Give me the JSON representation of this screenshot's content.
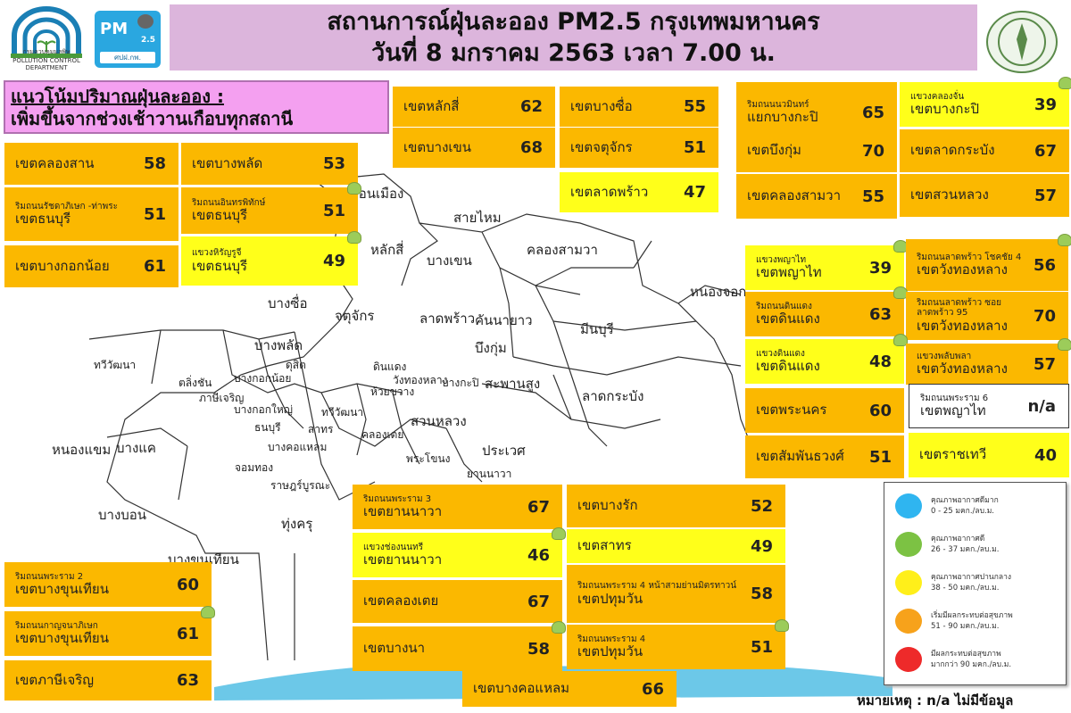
{
  "header": {
    "logo_pcd": "กรมควบคุมมลพิษ POLLUTION CONTROL DEPARTMENT",
    "logo_pm": "PM",
    "logo_pm_sub": "2.5",
    "logo_pm_org": "ศปฝ.กพ.",
    "title_line1": "สถานการณ์ฝุ่นละออง PM2.5 กรุงเทพมหานคร",
    "title_line2": "วันที่ 8 มกราคม 2563 เวลา 7.00 น.",
    "seal": "กรุงเทพมหานคร"
  },
  "trend": {
    "heading": "แนวโน้มปริมาณฝุ่นละออง :",
    "text": "เพิ่มขึ้นจากช่วงเช้าวานเกือบทุกสถานี"
  },
  "colors": {
    "orange": "#fbb800",
    "yellow": "#ffff1a",
    "blue": "#2fb5f0",
    "green": "#7cc243",
    "red": "#ee2a2a"
  },
  "stations": [
    {
      "sub": "",
      "district": "เขตหลักสี่",
      "value": "62",
      "level": "orange"
    },
    {
      "sub": "",
      "district": "เขตบางเขน",
      "value": "68",
      "level": "orange"
    },
    {
      "sub": "",
      "district": "เขตบางซื่อ",
      "value": "55",
      "level": "orange"
    },
    {
      "sub": "",
      "district": "เขตจตุจักร",
      "value": "51",
      "level": "orange"
    },
    {
      "sub": "",
      "district": "เขตลาดพร้าว",
      "value": "47",
      "level": "yellow"
    },
    {
      "sub": "ริมถนนนวมินทร์",
      "district": "แยกบางกะปิ",
      "value": "65",
      "level": "orange"
    },
    {
      "sub": "แขวงคลองจั่น",
      "district": "เขตบางกะปิ",
      "value": "39",
      "level": "yellow",
      "icon": "sensor-dot"
    },
    {
      "sub": "",
      "district": "เขตบึงกุ่ม",
      "value": "70",
      "level": "orange"
    },
    {
      "sub": "",
      "district": "เขตลาดกระบัง",
      "value": "67",
      "level": "orange"
    },
    {
      "sub": "",
      "district": "เขตคลองสามวา",
      "value": "55",
      "level": "orange"
    },
    {
      "sub": "",
      "district": "เขตสวนหลวง",
      "value": "57",
      "level": "orange"
    },
    {
      "sub": "",
      "district": "เขตคลองสาน",
      "value": "58",
      "level": "orange"
    },
    {
      "sub": "",
      "district": "เขตบางพลัด",
      "value": "53",
      "level": "orange"
    },
    {
      "sub": "ริมถนนรัชดาภิเษก -ท่าพระ",
      "district": "เขตธนบุรี",
      "value": "51",
      "level": "orange"
    },
    {
      "sub": "ริมถนนอินทรพิทักษ์",
      "district": "เขตธนบุรี",
      "value": "51",
      "level": "orange",
      "icon": "sensor-dot"
    },
    {
      "sub": "",
      "district": "เขตบางกอกน้อย",
      "value": "61",
      "level": "orange"
    },
    {
      "sub": "แขวงหิรัญรูจี",
      "district": "เขตธนบุรี",
      "value": "49",
      "level": "yellow",
      "icon": "sensor-dot"
    },
    {
      "sub": "แขวงพญาไท",
      "district": "เขตพญาไท",
      "value": "39",
      "level": "yellow",
      "icon": "sensor-dot"
    },
    {
      "sub": "ริมถนนลาดพร้าว โชคชัย 4",
      "district": "เขตวังทองหลาง",
      "value": "56",
      "level": "orange",
      "icon": "sensor-dot"
    },
    {
      "sub": "ริมถนนดินแดง",
      "district": "เขตดินแดง",
      "value": "63",
      "level": "orange",
      "icon": "sensor-dot"
    },
    {
      "sub": "ริมถนนลาดพร้าว ซอยลาดพร้าว 95",
      "district": "เขตวังทองหลาง",
      "value": "70",
      "level": "orange"
    },
    {
      "sub": "แขวงดินแดง",
      "district": "เขตดินแดง",
      "value": "48",
      "level": "yellow",
      "icon": "sensor-dot"
    },
    {
      "sub": "แขวงพลับพลา",
      "district": "เขตวังทองหลาง",
      "value": "57",
      "level": "orange",
      "icon": "sensor-dot"
    },
    {
      "sub": "ริมถนนพระราม 6",
      "district": "เขตพญาไท",
      "value": "n/a",
      "level": "white"
    },
    {
      "sub": "",
      "district": "เขตพระนคร",
      "value": "60",
      "level": "orange"
    },
    {
      "sub": "",
      "district": "เขตสัมพันธวงศ์",
      "value": "51",
      "level": "orange"
    },
    {
      "sub": "",
      "district": "เขตราชเทวี",
      "value": "40",
      "level": "yellow"
    },
    {
      "sub": "ริมถนนพระราม 3",
      "district": "เขตยานนาวา",
      "value": "67",
      "level": "orange"
    },
    {
      "sub": "แขวงช่องนนทรี",
      "district": "เขตยานนาวา",
      "value": "46",
      "level": "yellow",
      "icon": "sensor-dot"
    },
    {
      "sub": "",
      "district": "เขตคลองเตย",
      "value": "67",
      "level": "orange"
    },
    {
      "sub": "",
      "district": "เขตบางนา",
      "value": "58",
      "level": "orange",
      "icon": "sensor-dot"
    },
    {
      "sub": "",
      "district": "เขตบางรัก",
      "value": "52",
      "level": "orange"
    },
    {
      "sub": "",
      "district": "เขตสาทร",
      "value": "49",
      "level": "yellow"
    },
    {
      "sub": "ริมถนนพระราม 4 หน้าสามย่านมิตรทาวน์",
      "district": "เขตปทุมวัน",
      "value": "58",
      "level": "orange"
    },
    {
      "sub": "ริมถนนพระราม 4",
      "district": "เขตปทุมวัน",
      "value": "51",
      "level": "orange",
      "icon": "sensor-dot"
    },
    {
      "sub": "",
      "district": "เขตบางคอแหลม",
      "value": "66",
      "level": "orange"
    },
    {
      "sub": "ริมถนนพระราม 2",
      "district": "เขตบางขุนเทียน",
      "value": "60",
      "level": "orange"
    },
    {
      "sub": "ริมถนนกาญจนาภิเษก",
      "district": "เขตบางขุนเทียน",
      "value": "61",
      "level": "orange",
      "icon": "sensor-dot"
    },
    {
      "sub": "",
      "district": "เขตภาษีเจริญ",
      "value": "63",
      "level": "orange"
    }
  ],
  "map_labels": [
    "ดอนเมือง",
    "สายไหม",
    "หลักสี่",
    "บางเขน",
    "คลองสามวา",
    "หนองจอก",
    "บางซื่อ",
    "จตุจักร",
    "ลาดพร้าว",
    "คันนายาว",
    "มีนบุรี",
    "บางพลัด",
    "บึงกุ่ม",
    "ทวีวัฒนา",
    "ตลิ่งชัน",
    "บางกอกน้อย",
    "ดุสิต",
    "ดินแดง",
    "วังทองหลาง",
    "ห้วยขวาง",
    "บางกะปิ",
    "สะพานสูง",
    "ลาดกระบัง",
    "ภาษีเจริญ",
    "บางกอกใหญ่",
    "ทวีวัฒนา",
    "สวนหลวง",
    "หนองแขม",
    "บางแค",
    "ธนบุรี",
    "สาทร",
    "คลองเตย",
    "ประเวศ",
    "บางคอแหลม",
    "พระโขนง",
    "จอมทอง",
    "ยานนาวา",
    "ราษฎร์บูรณะ",
    "บางนา",
    "บางบอน",
    "ทุ่งครุ",
    "บางขุนเทียน"
  ],
  "legend": [
    {
      "label": "คุณภาพอากาศดีมาก",
      "range": "0 - 25 มคก./ลบ.ม.",
      "color": "#2fb5f0"
    },
    {
      "label": "คุณภาพอากาศดี",
      "range": "26 - 37 มคก./ลบ.ม.",
      "color": "#7cc243"
    },
    {
      "label": "คุณภาพอากาศปานกลาง",
      "range": "38 - 50 มคก./ลบ.ม.",
      "color": "#ffef1a"
    },
    {
      "label": "เริ่มมีผลกระทบต่อสุขภาพ",
      "range": "51 - 90 มคก./ลบ.ม.",
      "color": "#f7a21b"
    },
    {
      "label": "มีผลกระทบต่อสุขภาพ",
      "range": "มากกว่า 90 มคก./ลบ.ม.",
      "color": "#ee2a2a"
    }
  ],
  "note": "หมายเหตุ : n/a ไม่มีข้อมูล"
}
